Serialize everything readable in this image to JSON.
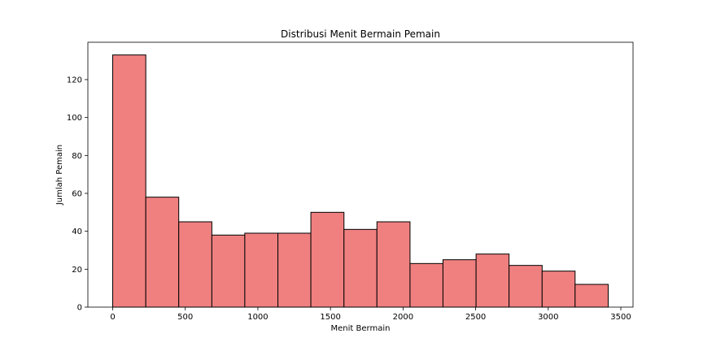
{
  "chart_data": {
    "type": "bar",
    "title": "Distribusi Menit Bermain Pemain",
    "xlabel": "Menit Bermain",
    "ylabel": "Jumlah Pemain",
    "bar_color": "#f08080",
    "edge_color": "#000000",
    "bins": [
      {
        "x0": 0,
        "x1": 228,
        "count": 133
      },
      {
        "x0": 228,
        "x1": 455,
        "count": 58
      },
      {
        "x0": 455,
        "x1": 683,
        "count": 45
      },
      {
        "x0": 683,
        "x1": 910,
        "count": 38
      },
      {
        "x0": 910,
        "x1": 1138,
        "count": 39
      },
      {
        "x0": 1138,
        "x1": 1365,
        "count": 39
      },
      {
        "x0": 1365,
        "x1": 1593,
        "count": 50
      },
      {
        "x0": 1593,
        "x1": 1820,
        "count": 41
      },
      {
        "x0": 1820,
        "x1": 2048,
        "count": 45
      },
      {
        "x0": 2048,
        "x1": 2275,
        "count": 23
      },
      {
        "x0": 2275,
        "x1": 2503,
        "count": 25
      },
      {
        "x0": 2503,
        "x1": 2730,
        "count": 28
      },
      {
        "x0": 2730,
        "x1": 2958,
        "count": 22
      },
      {
        "x0": 2958,
        "x1": 3185,
        "count": 19
      },
      {
        "x0": 3185,
        "x1": 3413,
        "count": 12
      }
    ],
    "xlim": [
      -171,
      3584
    ],
    "ylim": [
      0,
      139.7
    ],
    "x_ticks": [
      0,
      500,
      1000,
      1500,
      2000,
      2500,
      3000,
      3500
    ],
    "y_ticks": [
      0,
      20,
      40,
      60,
      80,
      100,
      120
    ],
    "grid": false
  }
}
